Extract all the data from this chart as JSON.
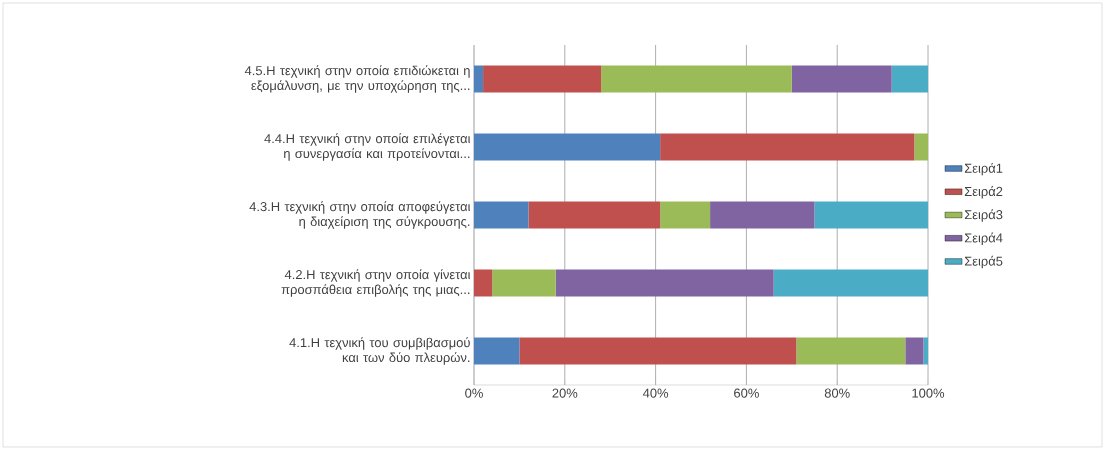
{
  "chart_data": {
    "type": "bar",
    "orientation": "horizontal",
    "stacked": true,
    "categories": [
      "4.5.Η τεχνική στην οποία επιδιώκεται η εξομάλυνση, με την υποχώρηση της...",
      "4.4.Η τεχνική στην οποία επιλέγεται η συνεργασία και προτείνονται...",
      "4.3.Η τεχνική στην οποία αποφεύγεται η διαχείριση της σύγκρουσης.",
      "4.2.Η τεχνική στην οποία γίνεται προσπάθεια επιβολής της μιας...",
      "4.1.Η τεχνική του συμβιβασμού και των δύο πλευρών."
    ],
    "series": [
      {
        "name": "Σειρά1",
        "color": "#4f81bd",
        "values": [
          2,
          41,
          12,
          0,
          10
        ]
      },
      {
        "name": "Σειρά2",
        "color": "#c0504d",
        "values": [
          26,
          56,
          29,
          4,
          61
        ]
      },
      {
        "name": "Σειρά3",
        "color": "#9bbb59",
        "values": [
          42,
          3,
          11,
          14,
          24
        ]
      },
      {
        "name": "Σειρά4",
        "color": "#8064a2",
        "values": [
          22,
          0,
          23,
          48,
          4
        ]
      },
      {
        "name": "Σειρά5",
        "color": "#4bacc6",
        "values": [
          8,
          0,
          25,
          34,
          1
        ]
      }
    ],
    "xlim": [
      0,
      100
    ],
    "xticks": [
      {
        "value": 0,
        "label": "0%"
      },
      {
        "value": 20,
        "label": "20%"
      },
      {
        "value": 40,
        "label": "40%"
      },
      {
        "value": 60,
        "label": "60%"
      },
      {
        "value": 80,
        "label": "80%"
      },
      {
        "value": 100,
        "label": "100%"
      }
    ],
    "grid": "x",
    "legend": "right"
  }
}
